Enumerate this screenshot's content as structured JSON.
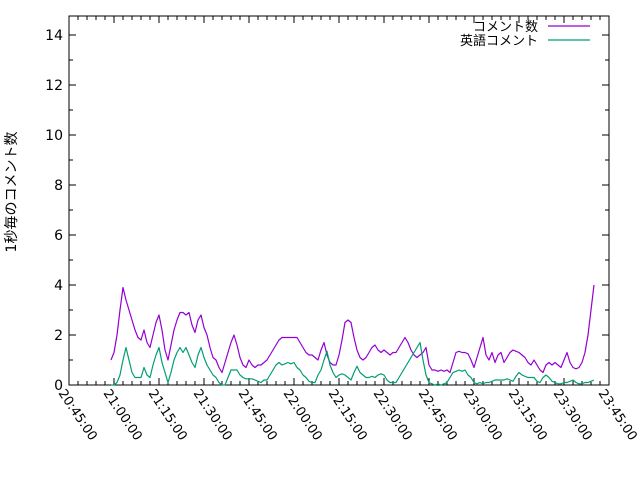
{
  "chart_data": {
    "type": "line",
    "title": "",
    "xlabel": "",
    "ylabel": "1秒毎のコメント数",
    "background": "#ffffff",
    "axis_color": "#000000",
    "grid": false,
    "legend_position": "top-right",
    "x_axis": {
      "tick_labels": [
        "20:45:00",
        "21:00:00",
        "21:15:00",
        "21:30:00",
        "21:45:00",
        "22:00:00",
        "22:15:00",
        "22:30:00",
        "22:45:00",
        "23:00:00",
        "23:15:00",
        "23:30:00",
        "23:45:00"
      ],
      "major_tick_interval_minutes": 15,
      "minor_tick_interval_minutes": 3,
      "range_minutes": [
        0,
        180
      ],
      "label_rotation_deg": 56
    },
    "y_axis": {
      "ticks": [
        0,
        2,
        4,
        6,
        8,
        10,
        12,
        14
      ],
      "minor_tick_interval": 1,
      "range": [
        0,
        14.76
      ]
    },
    "series": [
      {
        "name": "コメント数",
        "color": "#9400d3",
        "start_minute_after_2045": 14,
        "step_minutes": 1,
        "values": [
          1.0,
          1.3,
          2.0,
          3.0,
          3.9,
          3.4,
          3.0,
          2.6,
          2.2,
          1.9,
          1.8,
          2.2,
          1.7,
          1.5,
          2.0,
          2.5,
          2.8,
          2.2,
          1.4,
          1.0,
          1.6,
          2.2,
          2.6,
          2.9,
          2.9,
          2.8,
          2.9,
          2.4,
          2.1,
          2.6,
          2.8,
          2.3,
          2.0,
          1.5,
          1.1,
          1.0,
          0.7,
          0.5,
          0.9,
          1.3,
          1.7,
          2.0,
          1.6,
          1.1,
          0.8,
          0.7,
          1.0,
          0.8,
          0.7,
          0.8,
          0.8,
          0.9,
          1.0,
          1.2,
          1.4,
          1.6,
          1.8,
          1.9,
          1.9,
          1.9,
          1.9,
          1.9,
          1.9,
          1.7,
          1.5,
          1.3,
          1.2,
          1.2,
          1.1,
          1.0,
          1.4,
          1.7,
          1.2,
          0.9,
          0.8,
          0.8,
          1.2,
          1.8,
          2.5,
          2.6,
          2.5,
          1.9,
          1.4,
          1.1,
          1.0,
          1.1,
          1.3,
          1.5,
          1.6,
          1.4,
          1.3,
          1.4,
          1.3,
          1.2,
          1.3,
          1.3,
          1.5,
          1.7,
          1.9,
          1.7,
          1.4,
          1.2,
          1.1,
          1.2,
          1.3,
          1.5,
          0.8,
          0.6,
          0.6,
          0.55,
          0.6,
          0.55,
          0.6,
          0.5,
          0.9,
          1.3,
          1.35,
          1.3,
          1.3,
          1.25,
          1.0,
          0.7,
          1.1,
          1.5,
          1.9,
          1.2,
          1.0,
          1.3,
          0.9,
          1.2,
          1.3,
          0.9,
          1.1,
          1.3,
          1.4,
          1.35,
          1.3,
          1.2,
          1.1,
          0.9,
          0.8,
          1.0,
          0.8,
          0.6,
          0.5,
          0.8,
          0.9,
          0.8,
          0.9,
          0.8,
          0.7,
          1.0,
          1.3,
          0.9,
          0.7,
          0.65,
          0.7,
          0.9,
          1.3,
          2.0,
          3.0,
          4.0
        ]
      },
      {
        "name": "英語コメント",
        "color": "#009e73",
        "start_minute_after_2045": 14,
        "step_minutes": 1,
        "values": [
          0.0,
          0.0,
          0.1,
          0.4,
          1.0,
          1.5,
          1.0,
          0.5,
          0.3,
          0.3,
          0.3,
          0.7,
          0.4,
          0.3,
          0.8,
          1.2,
          1.5,
          0.9,
          0.5,
          0.1,
          0.5,
          1.0,
          1.3,
          1.5,
          1.3,
          1.5,
          1.2,
          0.9,
          0.7,
          1.2,
          1.5,
          1.1,
          0.8,
          0.6,
          0.4,
          0.3,
          0.1,
          0.0,
          0.0,
          0.3,
          0.6,
          0.6,
          0.6,
          0.4,
          0.3,
          0.25,
          0.25,
          0.25,
          0.2,
          0.15,
          0.1,
          0.2,
          0.2,
          0.4,
          0.6,
          0.8,
          0.9,
          0.8,
          0.85,
          0.9,
          0.85,
          0.9,
          0.7,
          0.6,
          0.4,
          0.3,
          0.15,
          0.1,
          0.1,
          0.4,
          0.6,
          1.0,
          1.35,
          0.8,
          0.5,
          0.3,
          0.4,
          0.45,
          0.4,
          0.3,
          0.2,
          0.5,
          0.75,
          0.5,
          0.4,
          0.3,
          0.3,
          0.35,
          0.3,
          0.4,
          0.45,
          0.4,
          0.2,
          0.1,
          0.1,
          0.1,
          0.3,
          0.5,
          0.7,
          0.9,
          1.1,
          1.3,
          1.5,
          1.7,
          1.0,
          0.4,
          0.1,
          0.05,
          0.0,
          0.05,
          0.0,
          0.05,
          0.1,
          0.3,
          0.5,
          0.55,
          0.6,
          0.55,
          0.6,
          0.4,
          0.3,
          0.1,
          0.05,
          0.1,
          0.05,
          0.1,
          0.1,
          0.15,
          0.2,
          0.2,
          0.2,
          0.2,
          0.25,
          0.2,
          0.15,
          0.35,
          0.5,
          0.4,
          0.35,
          0.3,
          0.3,
          0.3,
          0.15,
          0.1,
          0.3,
          0.4,
          0.3,
          0.15,
          0.1,
          0.05,
          0.05,
          0.1,
          0.1,
          0.15,
          0.2,
          0.1,
          0.05,
          0.05,
          0.1,
          0.1,
          0.15,
          0.2
        ]
      }
    ]
  }
}
